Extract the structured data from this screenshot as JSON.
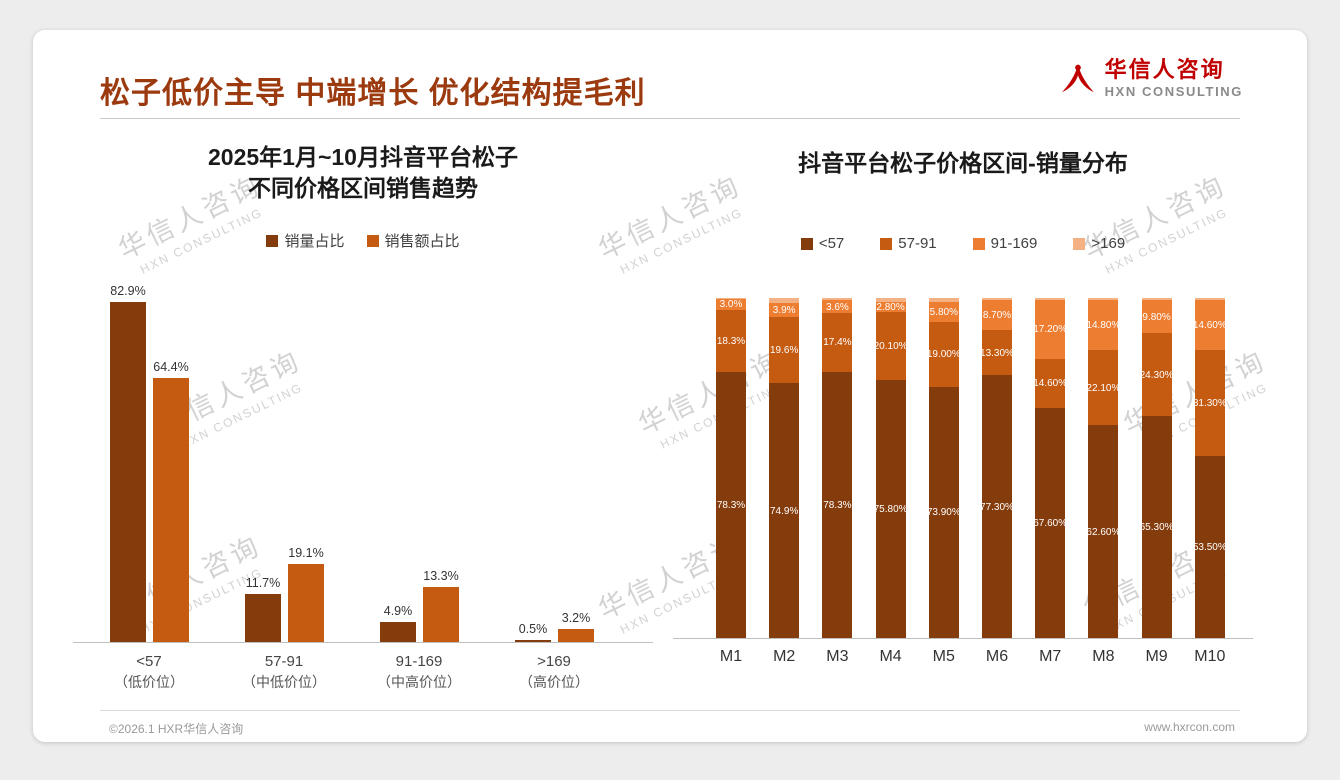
{
  "page": {
    "title": "松子低价主导 中端增长 优化结构提毛利",
    "title_color": "#9c3a0f",
    "footer_left": "©2026.1 HXR华信人咨询",
    "footer_right": "www.hxrcon.com",
    "background_color": "#ededed"
  },
  "logo": {
    "cn": "华信人咨询",
    "en": "HXN CONSULTING",
    "accent_color": "#c00000"
  },
  "watermark": {
    "cn": "华信人咨询",
    "en": "HXN CONSULTING"
  },
  "colors": {
    "dark_brown": "#843C0C",
    "burnt_orange": "#C55A11",
    "orange": "#ED7D31",
    "pale_orange": "#F4B183"
  },
  "chart_data": [
    {
      "type": "bar",
      "subtype": "grouped",
      "title": "2025年1月~10月抖音平台松子 不同价格区间销售趋势",
      "title_lines": [
        "2025年1月~10月抖音平台松子",
        "不同价格区间销售趋势"
      ],
      "categories": [
        "<57",
        "57-91",
        "91-169",
        ">169"
      ],
      "category_notes": [
        "（低价位）",
        "（中低价位）",
        "（中高价位）",
        "（高价位）"
      ],
      "series": [
        {
          "name": "销量占比",
          "color": "#843C0C",
          "values": [
            82.9,
            11.7,
            4.9,
            0.5
          ]
        },
        {
          "name": "销售额占比",
          "color": "#C55A11",
          "values": [
            64.4,
            19.1,
            13.3,
            3.2
          ]
        }
      ],
      "value_suffix": "%",
      "ylim": [
        0,
        90
      ],
      "grid": false,
      "legend_position": "top"
    },
    {
      "type": "bar",
      "subtype": "stacked-100",
      "title": "抖音平台松子价格区间-销量分布",
      "categories": [
        "M1",
        "M2",
        "M3",
        "M4",
        "M5",
        "M6",
        "M7",
        "M8",
        "M9",
        "M10"
      ],
      "series": [
        {
          "name": "<57",
          "color": "#843C0C",
          "values": [
            78.3,
            74.9,
            78.3,
            75.8,
            73.9,
            77.3,
            67.6,
            62.6,
            65.3,
            53.5
          ],
          "labels": [
            "78.3%",
            "74.9%",
            "78.3%",
            "75.80%",
            "73.90%",
            "77.30%",
            "67.60%",
            "62.60%",
            "65.30%",
            "53.50%"
          ]
        },
        {
          "name": "57-91",
          "color": "#C55A11",
          "values": [
            18.3,
            19.6,
            17.4,
            20.1,
            19.0,
            13.3,
            14.6,
            22.1,
            24.3,
            31.3
          ],
          "labels": [
            "18.3%",
            "19.6%",
            "17.4%",
            "20.10%",
            "19.00%",
            "13.30%",
            "14.60%",
            "22.10%",
            "24.30%",
            "31.30%"
          ]
        },
        {
          "name": "91-169",
          "color": "#ED7D31",
          "values": [
            3.0,
            3.9,
            3.6,
            2.8,
            5.8,
            8.7,
            17.2,
            14.8,
            9.8,
            14.6
          ],
          "labels": [
            "3.0%",
            "3.9%",
            "3.6%",
            "2.80%",
            "5.80%",
            "8.70%",
            "17.20%",
            "14.80%",
            "9.80%",
            "14.60%"
          ]
        },
        {
          "name": ">169",
          "color": "#F4B183",
          "values": [
            0.4,
            1.6,
            0.7,
            1.3,
            1.3,
            0.7,
            0.6,
            0.5,
            0.6,
            0.6
          ],
          "labels": [
            "",
            "",
            "",
            "",
            "",
            "",
            "",
            "",
            "",
            ""
          ]
        }
      ],
      "value_suffix": "%",
      "ylim": [
        0,
        100
      ],
      "grid": false,
      "legend_position": "top"
    }
  ]
}
